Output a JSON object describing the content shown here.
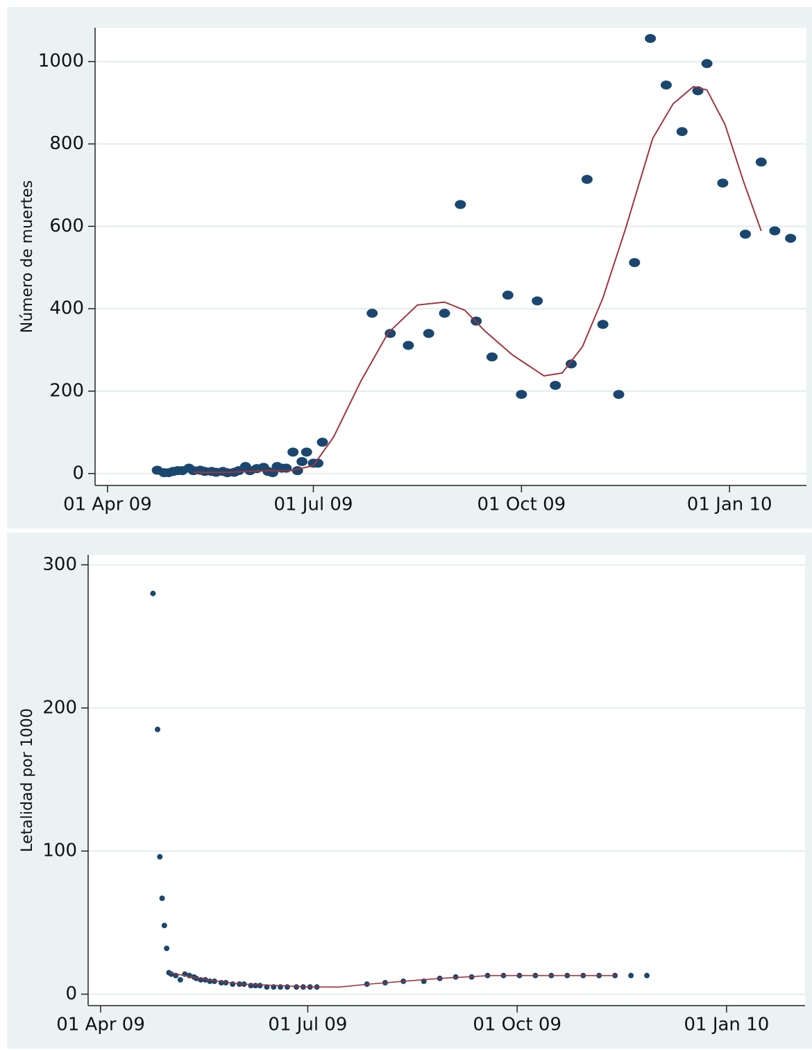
{
  "chart_data": [
    {
      "type": "scatter",
      "ylabel": "Número de muertes",
      "xlim": [
        -5.5,
        309
      ],
      "ylim": [
        -29,
        1082
      ],
      "xticks": [
        {
          "value": 0,
          "label": "01 Apr 09"
        },
        {
          "value": 91,
          "label": "01 Jul 09"
        },
        {
          "value": 183,
          "label": "01 Oct 09"
        },
        {
          "value": 275,
          "label": "01 Jan 10"
        }
      ],
      "yticks": [
        0,
        200,
        400,
        600,
        800,
        1000
      ],
      "grid": true,
      "series": [
        {
          "type": "scatter",
          "color": "#1a476f",
          "x": [
            22,
            25,
            27,
            29,
            31,
            33,
            36,
            38,
            41,
            43,
            46,
            48,
            51,
            53,
            56,
            58,
            61,
            63,
            66,
            69,
            71,
            73,
            75,
            77,
            79,
            82,
            84,
            86,
            88,
            91,
            93,
            95,
            117,
            125,
            133,
            142,
            149,
            156,
            163,
            170,
            177,
            183,
            190,
            198,
            205,
            212,
            219,
            226,
            233,
            240,
            247,
            254,
            261,
            265,
            272,
            282,
            289,
            295,
            302
          ],
          "values": [
            8,
            2,
            2,
            5,
            7,
            7,
            13,
            7,
            8,
            5,
            5,
            3,
            5,
            2,
            3,
            7,
            17,
            7,
            12,
            15,
            5,
            2,
            17,
            13,
            13,
            52,
            7,
            29,
            52,
            25,
            25,
            76,
            389,
            340,
            311,
            340,
            389,
            653,
            370,
            283,
            433,
            192,
            419,
            214,
            266,
            714,
            362,
            192,
            512,
            1056,
            943,
            830,
            929,
            995,
            705,
            581,
            756,
            589,
            571
          ]
        },
        {
          "type": "line",
          "color": "#a0343c",
          "x": [
            38,
            54,
            69,
            81,
            91,
            100,
            112,
            124,
            137,
            149,
            158,
            167,
            179,
            193,
            201,
            210,
            219,
            229,
            241,
            250,
            259,
            265,
            273,
            281,
            289
          ],
          "values": [
            3,
            3,
            7,
            7,
            19,
            89,
            224,
            341,
            409,
            416,
            396,
            345,
            288,
            237,
            244,
            308,
            426,
            594,
            813,
            897,
            939,
            931,
            847,
            712,
            589
          ]
        }
      ]
    },
    {
      "type": "scatter",
      "ylabel": "Letalidad por 1000",
      "xlim": [
        -5.5,
        309.5
      ],
      "ylim": [
        -8,
        307
      ],
      "xticks": [
        {
          "value": 0,
          "label": "01 Apr 09"
        },
        {
          "value": 91,
          "label": "01 Jul 09"
        },
        {
          "value": 183,
          "label": "01 Oct 09"
        },
        {
          "value": 275,
          "label": "01 Jan 10"
        }
      ],
      "yticks": [
        0,
        100,
        200,
        300
      ],
      "grid": true,
      "series": [
        {
          "type": "scatter",
          "color": "#1a476f",
          "x": [
            23,
            25,
            26,
            27,
            28,
            29,
            30,
            31,
            33,
            35,
            37,
            39,
            41,
            42,
            44,
            46,
            48,
            50,
            53,
            55,
            58,
            61,
            63,
            66,
            68,
            70,
            73,
            76,
            79,
            82,
            86,
            89,
            92,
            95,
            117,
            125,
            133,
            142,
            149,
            156,
            163,
            170,
            177,
            184,
            191,
            198,
            205,
            212,
            219,
            226,
            233,
            240
          ],
          "values": [
            280,
            185,
            96,
            67,
            48,
            32,
            15,
            14,
            13,
            10,
            14,
            13,
            12,
            11,
            10,
            10,
            9,
            9,
            8,
            8,
            7,
            7,
            7,
            6,
            6,
            6,
            5,
            5,
            5,
            5,
            5,
            5,
            5,
            5,
            7,
            8,
            9,
            9,
            11,
            12,
            12,
            13,
            13,
            13,
            13,
            13,
            13,
            13,
            13,
            13,
            13,
            13
          ]
        },
        {
          "type": "line",
          "color": "#a0343c",
          "x": [
            30,
            47,
            62,
            78,
            93,
            105,
            118,
            133,
            149,
            171,
            201,
            227
          ],
          "values": [
            15,
            10,
            7,
            6,
            5,
            5,
            7,
            9,
            11,
            13,
            13,
            13
          ]
        }
      ]
    }
  ]
}
